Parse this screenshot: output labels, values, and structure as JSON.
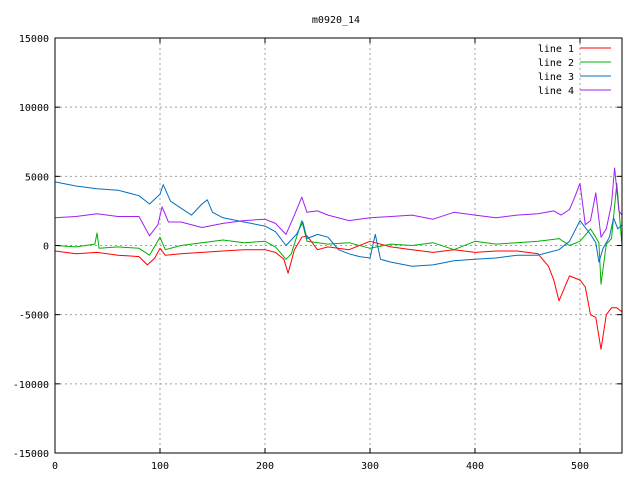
{
  "chart_data": {
    "type": "line",
    "title": "m0920_14",
    "xlabel": "",
    "ylabel": "",
    "xlim": [
      0,
      540
    ],
    "ylim": [
      -15000,
      15000
    ],
    "x_ticks": [
      0,
      100,
      200,
      300,
      400,
      500
    ],
    "y_ticks": [
      -15000,
      -10000,
      -5000,
      0,
      5000,
      10000,
      15000
    ],
    "grid": true,
    "legend_position": "top-right",
    "series": [
      {
        "name": "line 1",
        "color": "#ff0000",
        "x": [
          0,
          20,
          40,
          60,
          80,
          88,
          95,
          100,
          105,
          120,
          140,
          160,
          180,
          200,
          210,
          218,
          222,
          228,
          235,
          240,
          250,
          260,
          280,
          300,
          320,
          340,
          360,
          380,
          400,
          420,
          440,
          460,
          470,
          475,
          480,
          490,
          500,
          505,
          510,
          515,
          520,
          525,
          530,
          535,
          540
        ],
        "y": [
          -400,
          -600,
          -500,
          -700,
          -800,
          -1400,
          -900,
          -200,
          -700,
          -600,
          -500,
          -400,
          -300,
          -300,
          -500,
          -1000,
          -2000,
          -300,
          600,
          700,
          -300,
          -100,
          -300,
          300,
          -100,
          -300,
          -500,
          -300,
          -500,
          -400,
          -400,
          -600,
          -1500,
          -2500,
          -4000,
          -2200,
          -2500,
          -3000,
          -5000,
          -5200,
          -7500,
          -5000,
          -4500,
          -4500,
          -4800
        ]
      },
      {
        "name": "line 2",
        "color": "#00b000",
        "x": [
          0,
          20,
          38,
          40,
          42,
          60,
          80,
          90,
          100,
          105,
          120,
          140,
          160,
          180,
          200,
          210,
          220,
          225,
          235,
          240,
          260,
          280,
          300,
          320,
          340,
          360,
          380,
          400,
          420,
          440,
          460,
          470,
          480,
          490,
          500,
          510,
          515,
          518,
          520,
          525,
          530,
          535,
          540
        ],
        "y": [
          0,
          -100,
          100,
          900,
          -200,
          -100,
          -200,
          -700,
          600,
          -300,
          0,
          200,
          400,
          200,
          300,
          -100,
          -1000,
          -600,
          1800,
          300,
          100,
          200,
          -200,
          100,
          0,
          200,
          -300,
          300,
          100,
          200,
          300,
          400,
          500,
          0,
          300,
          1200,
          600,
          200,
          -2800,
          100,
          500,
          4500,
          0
        ]
      },
      {
        "name": "line 3",
        "color": "#0070c0",
        "x": [
          0,
          20,
          40,
          60,
          80,
          90,
          100,
          103,
          110,
          120,
          130,
          140,
          145,
          150,
          160,
          180,
          200,
          210,
          220,
          230,
          236,
          240,
          250,
          260,
          270,
          280,
          290,
          300,
          305,
          310,
          320,
          340,
          360,
          380,
          400,
          420,
          440,
          460,
          470,
          480,
          490,
          500,
          510,
          515,
          518,
          522,
          528,
          532,
          536,
          540
        ],
        "y": [
          4600,
          4300,
          4100,
          4000,
          3600,
          3000,
          3700,
          4400,
          3200,
          2700,
          2200,
          3000,
          3300,
          2400,
          2000,
          1700,
          1400,
          1000,
          0,
          800,
          1700,
          500,
          800,
          600,
          -300,
          -600,
          -800,
          -900,
          800,
          -1000,
          -1200,
          -1500,
          -1400,
          -1100,
          -1000,
          -900,
          -700,
          -700,
          -500,
          -300,
          300,
          1800,
          800,
          200,
          -1200,
          -200,
          600,
          2000,
          1200,
          1500
        ]
      },
      {
        "name": "line 4",
        "color": "#a020f0",
        "x": [
          0,
          20,
          40,
          60,
          80,
          90,
          98,
          102,
          108,
          120,
          140,
          160,
          180,
          200,
          210,
          220,
          228,
          235,
          240,
          250,
          260,
          280,
          300,
          320,
          340,
          360,
          380,
          400,
          420,
          440,
          460,
          475,
          482,
          490,
          495,
          500,
          505,
          510,
          515,
          520,
          525,
          530,
          533,
          537,
          540
        ],
        "y": [
          2000,
          2100,
          2300,
          2100,
          2100,
          700,
          1500,
          2800,
          1700,
          1700,
          1300,
          1600,
          1800,
          1900,
          1600,
          800,
          2200,
          3500,
          2400,
          2500,
          2200,
          1800,
          2000,
          2100,
          2200,
          1900,
          2400,
          2200,
          2000,
          2200,
          2300,
          2500,
          2200,
          2600,
          3500,
          4500,
          1500,
          1800,
          3800,
          600,
          1200,
          3000,
          5600,
          2500,
          2200
        ]
      }
    ]
  }
}
